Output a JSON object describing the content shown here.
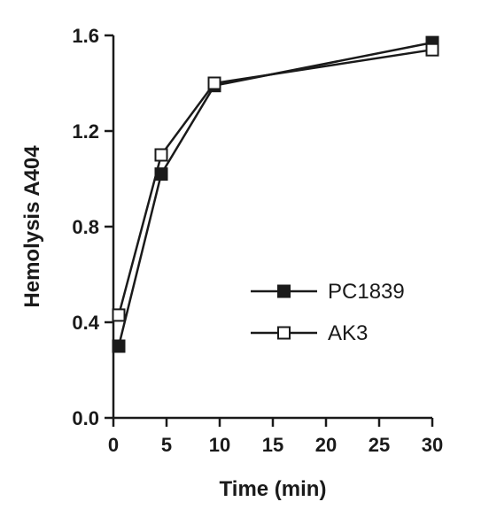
{
  "chart_data": {
    "type": "line",
    "xlabel": "Time (min)",
    "ylabel": "Hemolysis A404",
    "xlim": [
      0,
      30
    ],
    "ylim": [
      0.0,
      1.6
    ],
    "xticks": [
      0,
      5,
      10,
      15,
      20,
      25,
      30
    ],
    "xtick_labels": [
      "0",
      "5",
      "10",
      "15",
      "20",
      "25",
      "30"
    ],
    "yticks": [
      0.0,
      0.4,
      0.8,
      1.2,
      1.6
    ],
    "ytick_labels": [
      "0.0",
      "0.4",
      "0.8",
      "1.2",
      "1.6"
    ],
    "grid": false,
    "legend_position": "center-right",
    "series": [
      {
        "name": "PC1839",
        "marker": "filled-square",
        "color": "#1a1a1a",
        "x": [
          0.5,
          4.5,
          9.5,
          30
        ],
        "y": [
          0.3,
          1.02,
          1.39,
          1.57
        ]
      },
      {
        "name": "AK3",
        "marker": "open-square",
        "color": "#1a1a1a",
        "x": [
          0.5,
          4.5,
          9.5,
          30
        ],
        "y": [
          0.43,
          1.1,
          1.4,
          1.54
        ]
      }
    ]
  }
}
